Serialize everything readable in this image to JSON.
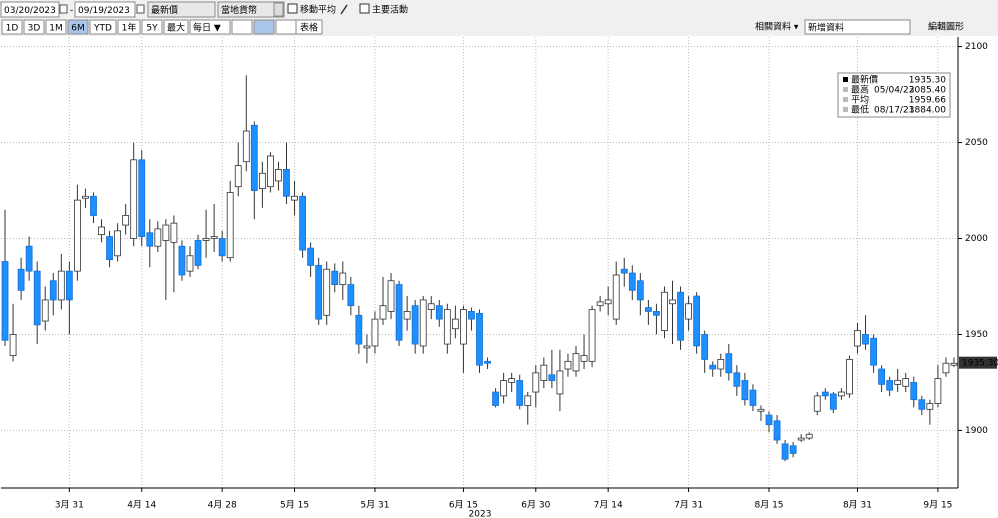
{
  "toolbar": {
    "start_date": "03/20/2023",
    "date_separator": "-",
    "end_date": "09/19/2023",
    "price_field": "最新價",
    "currency": "當地貨幣",
    "moving_average": "移動平均",
    "key_events": "主要活動",
    "periods": [
      "1D",
      "3D",
      "1M",
      "6M",
      "YTD",
      "1年",
      "5Y",
      "最大"
    ],
    "frequency": "每日 ▼",
    "table": "表格",
    "related": "相關資料 ▾",
    "add_data": "新增資料",
    "edit_chart": "編輯圖形"
  },
  "chart_data": {
    "type": "candlestick",
    "up_color": "#ffffff",
    "down_color": "#1e8fff",
    "categories": [
      null,
      null,
      null,
      null,
      null,
      null,
      null,
      null,
      "3月 31",
      null,
      null,
      null,
      null,
      null,
      null,
      null,
      null,
      "4月 14",
      null,
      null,
      null,
      null,
      null,
      null,
      null,
      null,
      null,
      "4月 28",
      null,
      null,
      null,
      null,
      null,
      null,
      null,
      null,
      "5月 15",
      null,
      null,
      null,
      null,
      null,
      null,
      null,
      null,
      null,
      "5月 31",
      null,
      null,
      null,
      null,
      null,
      null,
      null,
      null,
      null,
      null,
      "6月 15",
      null,
      null,
      null,
      null,
      null,
      null,
      null,
      null,
      "6月 30",
      null,
      null,
      null,
      null,
      null,
      null,
      null,
      null,
      "7月 14",
      null,
      null,
      null,
      null,
      null,
      null,
      null,
      null,
      null,
      "7月 31",
      null,
      null,
      null,
      null,
      null,
      null,
      null,
      null,
      null,
      "8月 15",
      null,
      null,
      null,
      null,
      null,
      null,
      null,
      null,
      null,
      null,
      "8月 31",
      null,
      null,
      null,
      null,
      null,
      null,
      null,
      null,
      null,
      "9月 15",
      null,
      null
    ],
    "x_label": "2023",
    "open": [
      1988,
      1939,
      1984,
      1996,
      1983,
      1957,
      1978,
      1968,
      1983,
      1983,
      2021,
      2022,
      2002,
      2001,
      1991,
      2007,
      2000,
      2041,
      2003,
      1996,
      1999,
      1998,
      1996,
      1983,
      1999,
      1999,
      2000,
      2000,
      1990,
      2027,
      2040,
      2059,
      2026,
      2027,
      2030,
      2036,
      2020,
      2022,
      1995,
      1986,
      1960,
      1983,
      1976,
      1976,
      1960,
      1943,
      1944,
      1958,
      1962,
      1976,
      1958,
      1965,
      1944,
      1963,
      1965,
      1945,
      1953,
      1945,
      1962,
      1961,
      1936,
      1920,
      1918,
      1925,
      1926,
      1913,
      1920,
      1926,
      1929,
      1919,
      1932,
      1931,
      1936,
      1936,
      1965,
      1966,
      1958,
      1984,
      1982,
      1978,
      1964,
      1962,
      1952,
      1966,
      1972,
      1958,
      1970,
      1950,
      1934,
      1932,
      1940,
      1930,
      1926,
      1921,
      1910,
      1908,
      1905,
      1893,
      1892,
      1895,
      1896,
      1910,
      1920,
      1919,
      1918,
      1919,
      1944,
      1950,
      1948,
      1932,
      1926,
      1924,
      1923,
      1925,
      1916,
      1911,
      1914,
      1930,
      1934
    ],
    "high": [
      2015,
      1966,
      1990,
      2001,
      1988,
      1975,
      1982,
      1992,
      1988,
      2028,
      2026,
      2024,
      2010,
      2004,
      2008,
      2018,
      2050,
      2046,
      2010,
      2009,
      2010,
      2012,
      1999,
      1996,
      2002,
      2015,
      2018,
      2004,
      2030,
      2050,
      2085,
      2061,
      2040,
      2045,
      2040,
      2050,
      2030,
      2024,
      1998,
      1990,
      1988,
      1987,
      1988,
      1980,
      1965,
      1950,
      1962,
      1980,
      1982,
      1978,
      1970,
      1968,
      1970,
      1970,
      1968,
      1966,
      1965,
      1965,
      1964,
      1963,
      1938,
      1922,
      1930,
      1930,
      1929,
      1920,
      1934,
      1938,
      1942,
      1942,
      1940,
      1944,
      1950,
      1965,
      1970,
      1975,
      1988,
      1990,
      1986,
      1982,
      1968,
      1966,
      1975,
      1978,
      1975,
      1970,
      1972,
      1952,
      1936,
      1940,
      1945,
      1934,
      1930,
      1924,
      1913,
      1910,
      1908,
      1895,
      1894,
      1898,
      1899,
      1920,
      1922,
      1920,
      1922,
      1939,
      1956,
      1960,
      1950,
      1934,
      1928,
      1932,
      1930,
      1928,
      1918,
      1916,
      1934,
      1938,
      1938
    ],
    "low": [
      1944,
      1936,
      1968,
      1978,
      1945,
      1952,
      1960,
      1963,
      1950,
      1978,
      2016,
      2008,
      1998,
      1985,
      1988,
      2002,
      1996,
      1996,
      1985,
      1993,
      1968,
      1972,
      1978,
      1980,
      1984,
      1990,
      1993,
      1988,
      1988,
      2022,
      2035,
      2010,
      2016,
      2024,
      2025,
      2018,
      2012,
      1990,
      1980,
      1955,
      1955,
      1972,
      1968,
      1960,
      1940,
      1935,
      1940,
      1955,
      1958,
      1944,
      1952,
      1940,
      1940,
      1958,
      1954,
      1940,
      1948,
      1930,
      1952,
      1930,
      1932,
      1912,
      1914,
      1920,
      1911,
      1903,
      1912,
      1922,
      1922,
      1910,
      1928,
      1928,
      1932,
      1933,
      1962,
      1960,
      1955,
      1975,
      1968,
      1960,
      1955,
      1950,
      1948,
      1945,
      1942,
      1952,
      1940,
      1930,
      1928,
      1928,
      1926,
      1918,
      1913,
      1910,
      1905,
      1899,
      1893,
      1884,
      1886,
      1894,
      1895,
      1908,
      1916,
      1909,
      1916,
      1917,
      1940,
      1942,
      1930,
      1920,
      1918,
      1920,
      1920,
      1912,
      1908,
      1903,
      1912,
      1928,
      1933
    ],
    "close": [
      1947,
      1950,
      1973,
      1983,
      1955,
      1968,
      1968,
      1983,
      1968,
      2020,
      2022,
      2012,
      2006,
      1989,
      2004,
      2012,
      2041,
      2001,
      1996,
      2005,
      2007,
      2008,
      1981,
      1991,
      1986,
      2000,
      2001,
      1991,
      2024,
      2038,
      2056,
      2025,
      2034,
      2043,
      2036,
      2022,
      2022,
      1994,
      1986,
      1958,
      1984,
      1976,
      1982,
      1965,
      1945,
      1944,
      1958,
      1965,
      1978,
      1947,
      1962,
      1945,
      1968,
      1966,
      1958,
      1963,
      1958,
      1963,
      1958,
      1934,
      1935,
      1913,
      1926,
      1927,
      1913,
      1918,
      1930,
      1934,
      1926,
      1931,
      1936,
      1940,
      1939,
      1963,
      1967,
      1968,
      1981,
      1982,
      1973,
      1968,
      1962,
      1960,
      1972,
      1968,
      1947,
      1966,
      1944,
      1937,
      1932,
      1937,
      1930,
      1923,
      1916,
      1913,
      1911,
      1903,
      1895,
      1885,
      1888,
      1896,
      1898,
      1918,
      1918,
      1911,
      1920,
      1937,
      1952,
      1945,
      1934,
      1924,
      1921,
      1926,
      1927,
      1916,
      1911,
      1914,
      1927,
      1935,
      1935
    ],
    "ylim": [
      1870,
      2105
    ],
    "yticks": [
      1900,
      1950,
      2000,
      2050,
      2100
    ],
    "grid": true,
    "last_price": {
      "value": 1935.3,
      "label": "1935.30"
    },
    "legend": [
      {
        "label": "最新價",
        "value": "1935.30"
      },
      {
        "label": "最高",
        "date": "05/04/23",
        "value": "2085.40"
      },
      {
        "label": "平均",
        "value": "1959.66"
      },
      {
        "label": "最低",
        "date": "08/17/23",
        "value": "1884.00"
      }
    ]
  }
}
